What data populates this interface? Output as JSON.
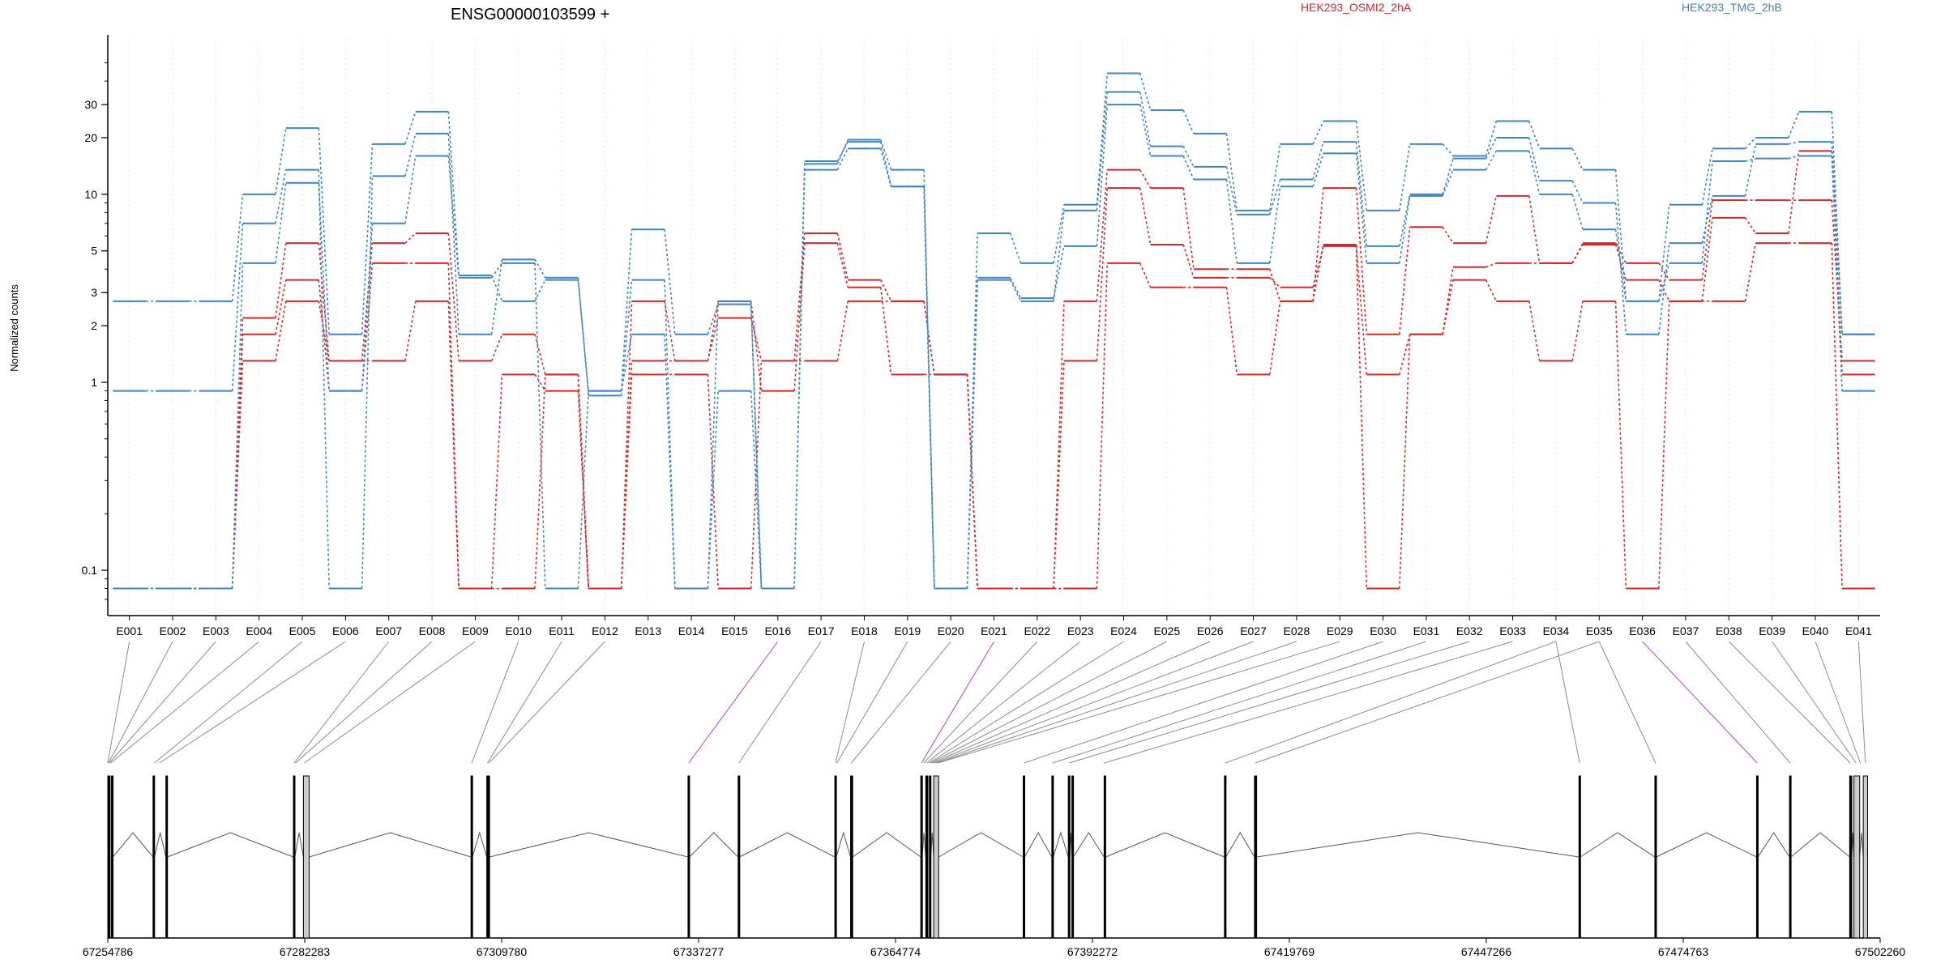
{
  "chart_data": {
    "type": "line",
    "title": "ENSG00000103599 +",
    "ylabel": "Normalized counts",
    "yscale": "log",
    "ylim": [
      0.07,
      55
    ],
    "yticks": [
      0.1,
      1,
      2,
      3,
      5,
      10,
      20,
      30
    ],
    "ytick_labels": [
      "0.1",
      "1",
      "2",
      "3",
      "5",
      "10",
      "20",
      "30"
    ],
    "categories": [
      "E001",
      "E002",
      "E003",
      "E004",
      "E005",
      "E006",
      "E007",
      "E008",
      "E009",
      "E010",
      "E011",
      "E012",
      "E013",
      "E014",
      "E015",
      "E016",
      "E017",
      "E018",
      "E019",
      "E020",
      "E021",
      "E022",
      "E023",
      "E024",
      "E025",
      "E026",
      "E027",
      "E028",
      "E029",
      "E030",
      "E031",
      "E032",
      "E033",
      "E034",
      "E035",
      "E036",
      "E037",
      "E038",
      "E039",
      "E040",
      "E041"
    ],
    "legend": [
      {
        "label": "HEK293_OSMI2_2hA",
        "color": "#d62728"
      },
      {
        "label": "HEK293_TMG_2hB",
        "color": "#3f85c2"
      }
    ],
    "series": [
      {
        "group": 0,
        "values": [
          0.08,
          0.08,
          0.08,
          2.2,
          5.5,
          1.3,
          5.5,
          6.2,
          1.3,
          1.8,
          1.1,
          0.08,
          2.7,
          1.3,
          2.2,
          1.3,
          6.2,
          3.5,
          2.7,
          1.1,
          0.08,
          0.08,
          2.7,
          13.5,
          10.8,
          4,
          4,
          2.7,
          10.8,
          1.8,
          6.7,
          5.5,
          9.8,
          4.3,
          5.5,
          4.3,
          3.5,
          9.3,
          9.3,
          9.3,
          1.3
        ]
      },
      {
        "group": 0,
        "values": [
          0.08,
          0.08,
          0.08,
          1.8,
          3.5,
          0.9,
          4.3,
          4.3,
          0.08,
          1.1,
          0.9,
          0.08,
          1.3,
          1.3,
          2.7,
          0.9,
          5.5,
          3.2,
          1.1,
          1.1,
          0.08,
          0.08,
          1.3,
          10.8,
          5.4,
          3.6,
          3.6,
          3.2,
          5.3,
          1.1,
          1.8,
          4.1,
          4.3,
          4.3,
          5.4,
          3.5,
          2.7,
          7.5,
          6.2,
          17,
          1.1
        ]
      },
      {
        "group": 0,
        "values": [
          0.08,
          0.08,
          0.08,
          1.3,
          2.7,
          1.3,
          1.3,
          2.7,
          0.08,
          0.08,
          1.1,
          0.08,
          1.1,
          1.1,
          0.08,
          1.3,
          1.3,
          2.7,
          2.7,
          1.1,
          0.08,
          0.08,
          0.08,
          4.3,
          3.2,
          3.2,
          1.1,
          2.7,
          5.4,
          0.08,
          1.8,
          3.5,
          2.7,
          1.3,
          2.7,
          0.08,
          2.7,
          2.7,
          5.5,
          5.5,
          0.08
        ]
      },
      {
        "group": 1,
        "values": [
          2.7,
          2.7,
          2.7,
          10,
          22.5,
          1.8,
          18.5,
          27.5,
          3.7,
          2.7,
          3.5,
          0.9,
          6.5,
          1.8,
          2.6,
          0.08,
          14.5,
          19.5,
          13.5,
          0.08,
          6.2,
          4.3,
          8.8,
          44,
          28,
          21,
          8.2,
          18.5,
          24.5,
          8.2,
          18.5,
          16,
          24.5,
          17.5,
          13.5,
          2.7,
          8.8,
          17.5,
          20,
          27.5,
          1.8
        ]
      },
      {
        "group": 1,
        "values": [
          0.9,
          0.9,
          0.9,
          7,
          13.5,
          0.08,
          12.5,
          21,
          1.8,
          4.5,
          3.6,
          0.85,
          3.5,
          0.08,
          0.9,
          0.08,
          15,
          19,
          11,
          0.08,
          3.5,
          2.7,
          8.2,
          35,
          18,
          14,
          7.8,
          12,
          19,
          5.3,
          10,
          15.5,
          20,
          11.8,
          9,
          1.8,
          5.5,
          9.8,
          18.5,
          19,
          1.8
        ]
      },
      {
        "group": 1,
        "values": [
          0.08,
          0.08,
          0.08,
          4.3,
          11.5,
          0.9,
          7,
          16,
          3.6,
          4.3,
          0.08,
          0.9,
          1.8,
          0.08,
          2.7,
          0.08,
          13.5,
          17.5,
          11,
          0.08,
          3.6,
          2.8,
          5.3,
          30,
          16,
          12,
          4.3,
          11,
          16.5,
          4.3,
          9.8,
          13.5,
          17,
          10,
          6.5,
          2.7,
          4.3,
          15,
          15.5,
          16,
          0.9
        ]
      }
    ],
    "gene_model": {
      "chromosome_ticks": [
        "67254786",
        "67282283",
        "67309780",
        "67337277",
        "67364774",
        "67392272",
        "67419769",
        "67447266",
        "67474763",
        "67502260"
      ],
      "exons": [
        [
          67254786,
          67255100
        ],
        [
          67255300,
          67255500
        ],
        [
          67261100,
          67261300
        ],
        [
          67262900,
          67263100
        ],
        [
          67280700,
          67280900
        ],
        [
          67282100,
          67282900
        ],
        [
          67305500,
          67305700
        ],
        [
          67307700,
          67308100
        ],
        [
          67335800,
          67336000
        ],
        [
          67342800,
          67343000
        ],
        [
          67356300,
          67356500
        ],
        [
          67358500,
          67358800
        ],
        [
          67368300,
          67368500
        ],
        [
          67369000,
          67369300
        ],
        [
          67369500,
          67369700
        ],
        [
          67370100,
          67370800
        ],
        [
          67382600,
          67382800
        ],
        [
          67386600,
          67386800
        ],
        [
          67388900,
          67389100
        ],
        [
          67389400,
          67389600
        ],
        [
          67393900,
          67394100
        ],
        [
          67410700,
          67410900
        ],
        [
          67414900,
          67415200
        ],
        [
          67460200,
          67460400
        ],
        [
          67470800,
          67471000
        ],
        [
          67485000,
          67485200
        ],
        [
          67489600,
          67489800
        ],
        [
          67498000,
          67498300
        ],
        [
          67498600,
          67499400
        ],
        [
          67499900,
          67500500
        ]
      ],
      "connectors": [
        [
          67254786,
          0,
          0
        ],
        [
          67254900,
          1,
          0
        ],
        [
          67255000,
          2,
          0
        ],
        [
          67255200,
          3,
          0
        ],
        [
          67261300,
          4,
          0
        ],
        [
          67262000,
          5,
          0
        ],
        [
          67280800,
          6,
          0
        ],
        [
          67281000,
          7,
          0
        ],
        [
          67282200,
          8,
          0
        ],
        [
          67305600,
          9,
          0
        ],
        [
          67307800,
          10,
          0
        ],
        [
          67308000,
          11,
          0
        ],
        [
          67335900,
          15,
          1
        ],
        [
          67342900,
          16,
          0
        ],
        [
          67356400,
          17,
          0
        ],
        [
          67356600,
          18,
          0
        ],
        [
          67358600,
          19,
          0
        ],
        [
          67368400,
          20,
          1
        ],
        [
          67368700,
          21,
          0
        ],
        [
          67369100,
          22,
          0
        ],
        [
          67369400,
          23,
          0
        ],
        [
          67369600,
          24,
          0
        ],
        [
          67369900,
          25,
          0
        ],
        [
          67370200,
          26,
          0
        ],
        [
          67370500,
          27,
          0
        ],
        [
          67370700,
          28,
          0
        ],
        [
          67382700,
          29,
          0
        ],
        [
          67386700,
          30,
          0
        ],
        [
          67389000,
          31,
          0
        ],
        [
          67393900,
          32,
          0
        ],
        [
          67410800,
          33,
          0
        ],
        [
          67415000,
          34,
          0
        ],
        [
          67460300,
          33,
          0
        ],
        [
          67470900,
          34,
          0
        ],
        [
          67485100,
          35,
          1
        ],
        [
          67489700,
          36,
          0
        ],
        [
          67498100,
          37,
          0
        ],
        [
          67498900,
          38,
          0
        ],
        [
          67499500,
          39,
          0
        ],
        [
          67500200,
          40,
          0
        ]
      ]
    }
  }
}
